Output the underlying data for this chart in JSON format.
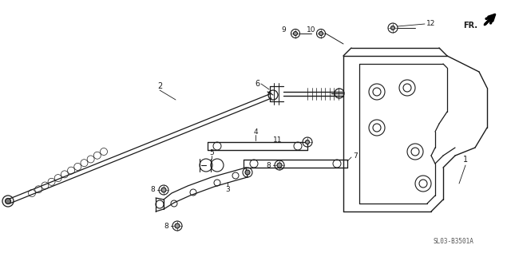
{
  "bg_color": "#ffffff",
  "line_color": "#1a1a1a",
  "text_color": "#1a1a1a",
  "ref_code": "SL03-B3501A",
  "fr_label": "FR.",
  "figsize": [
    6.4,
    3.17
  ],
  "dpi": 100
}
